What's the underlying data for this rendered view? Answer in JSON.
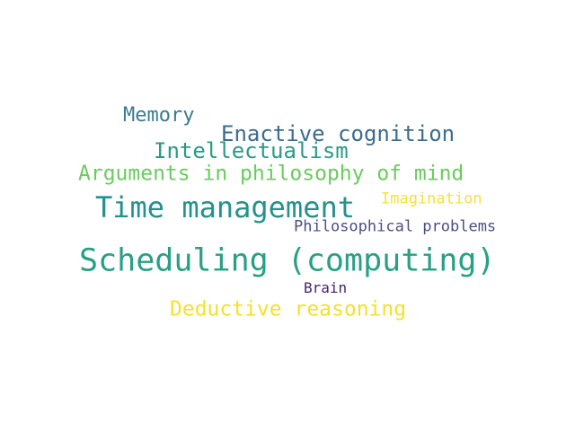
{
  "words": [
    {
      "text": "Memory",
      "color": "#3b7b8e",
      "weight": 0.55
    },
    {
      "text": "Enactive cognition",
      "color": "#3a6c8e",
      "weight": 0.62
    },
    {
      "text": "Intellectualism",
      "color": "#2a9a86",
      "weight": 0.62
    },
    {
      "text": "Arguments in philosophy of mind",
      "color": "#6acb5e",
      "weight": 0.62
    },
    {
      "text": "Time management",
      "color": "#23928a",
      "weight": 0.85
    },
    {
      "text": "Imagination",
      "color": "#f3e23a",
      "weight": 0.45
    },
    {
      "text": "Philosophical problems",
      "color": "#4b4e86",
      "weight": 0.45
    },
    {
      "text": "Scheduling (computing)",
      "color": "#27a085",
      "weight": 1.0
    },
    {
      "text": "Brain",
      "color": "#48226f",
      "weight": 0.42
    },
    {
      "text": "Deductive reasoning",
      "color": "#f4e12a",
      "weight": 0.62
    }
  ]
}
